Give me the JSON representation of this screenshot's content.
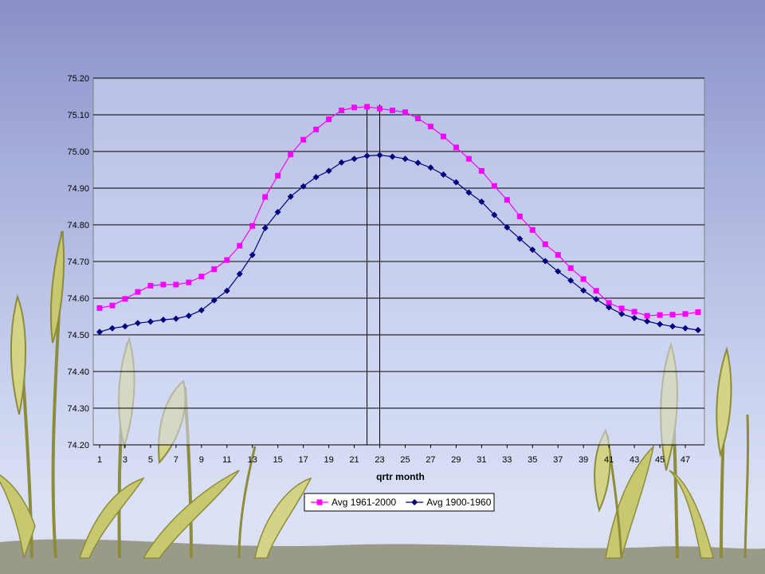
{
  "slide": {
    "background_colors": [
      "#8a90c8",
      "#dde3f6"
    ],
    "decoration": "wheat-stalks-illustration"
  },
  "chart_data": {
    "type": "line",
    "title": "",
    "xlabel": "qrtr month",
    "ylabel": "",
    "x": [
      1,
      2,
      3,
      4,
      5,
      6,
      7,
      8,
      9,
      10,
      11,
      12,
      13,
      14,
      15,
      16,
      17,
      18,
      19,
      20,
      21,
      22,
      23,
      24,
      25,
      26,
      27,
      28,
      29,
      30,
      31,
      32,
      33,
      34,
      35,
      36,
      37,
      38,
      39,
      40,
      41,
      42,
      43,
      44,
      45,
      46,
      47,
      48
    ],
    "xticks": [
      1,
      3,
      5,
      7,
      9,
      11,
      13,
      15,
      17,
      19,
      21,
      23,
      25,
      27,
      29,
      31,
      33,
      35,
      37,
      39,
      41,
      43,
      45,
      47
    ],
    "xlim": [
      1,
      48
    ],
    "ylim": [
      74.2,
      75.2
    ],
    "yticks": [
      "74.20",
      "74.30",
      "74.40",
      "74.50",
      "74.60",
      "74.70",
      "74.80",
      "74.90",
      "75.00",
      "75.10",
      "75.20"
    ],
    "grid": "horizontal",
    "legend_position": "bottom",
    "vertical_markers": [
      22,
      23
    ],
    "series": [
      {
        "name": "Avg 1961-2000",
        "color": "#ff00ff",
        "marker": "square",
        "values": [
          74.573,
          74.58,
          74.598,
          74.617,
          74.634,
          74.637,
          74.637,
          74.643,
          74.659,
          74.679,
          74.704,
          74.743,
          74.797,
          74.876,
          74.934,
          74.992,
          75.032,
          75.06,
          75.088,
          75.112,
          75.12,
          75.122,
          75.117,
          75.112,
          75.107,
          75.09,
          75.068,
          75.041,
          75.011,
          74.98,
          74.947,
          74.906,
          74.868,
          74.823,
          74.786,
          74.747,
          74.718,
          74.682,
          74.652,
          74.62,
          74.587,
          74.572,
          74.563,
          74.552,
          74.554,
          74.555,
          74.557,
          74.562
        ]
      },
      {
        "name": "Avg 1900-1960",
        "color": "#000080",
        "marker": "diamond",
        "values": [
          74.508,
          74.518,
          74.523,
          74.532,
          74.536,
          74.541,
          74.544,
          74.552,
          74.567,
          74.594,
          74.62,
          74.666,
          74.718,
          74.791,
          74.835,
          74.877,
          74.905,
          74.93,
          74.947,
          74.97,
          74.98,
          74.988,
          74.99,
          74.986,
          74.98,
          74.969,
          74.956,
          74.937,
          74.916,
          74.888,
          74.863,
          74.827,
          74.793,
          74.762,
          74.732,
          74.701,
          74.673,
          74.648,
          74.621,
          74.597,
          74.575,
          74.557,
          74.546,
          74.537,
          74.529,
          74.523,
          74.518,
          74.513
        ]
      }
    ]
  }
}
